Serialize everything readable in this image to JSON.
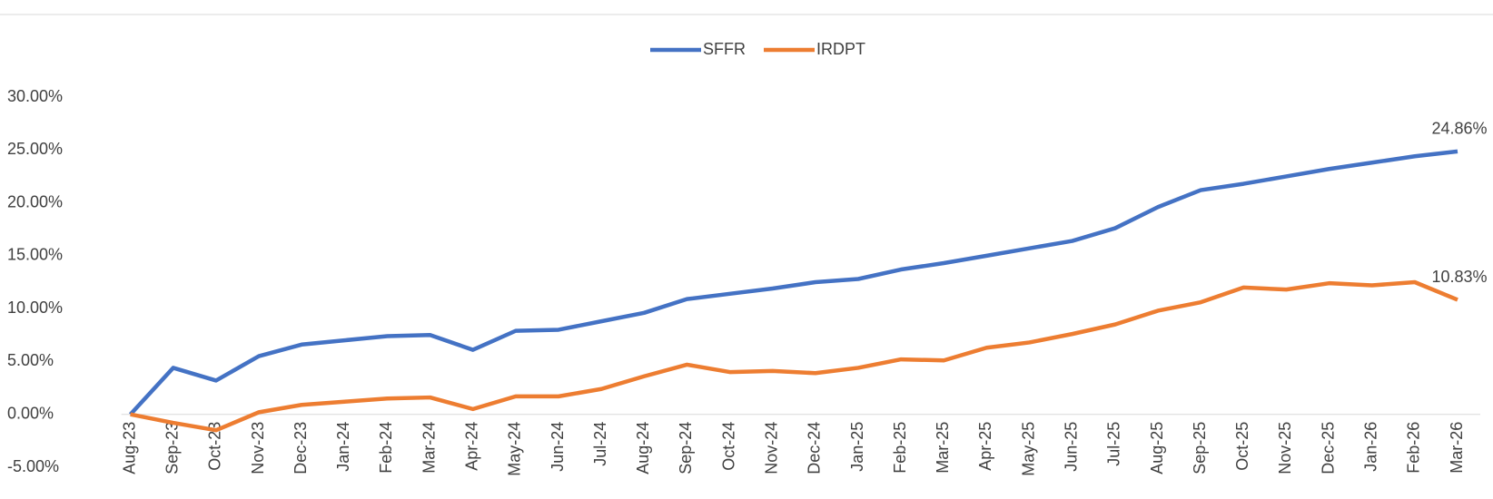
{
  "chart_data": {
    "type": "line",
    "categories": [
      "Aug-23",
      "Sep-23",
      "Oct-23",
      "Nov-23",
      "Dec-23",
      "Jan-24",
      "Feb-24",
      "Mar-24",
      "Apr-24",
      "May-24",
      "Jun-24",
      "Jul-24",
      "Aug-24",
      "Sep-24",
      "Oct-24",
      "Nov-24",
      "Dec-24",
      "Jan-25",
      "Feb-25",
      "Mar-25",
      "Apr-25",
      "May-25",
      "Jun-25",
      "Jul-25",
      "Aug-25",
      "Sep-25",
      "Oct-25",
      "Nov-25",
      "Dec-25",
      "Jan-26",
      "Feb-26",
      "Mar-26"
    ],
    "series": [
      {
        "name": "SFFR",
        "color": "#4472c4",
        "values": [
          0,
          4.4,
          3.2,
          5.5,
          6.6,
          7.0,
          7.4,
          7.5,
          6.1,
          7.9,
          8.0,
          8.8,
          9.6,
          10.9,
          11.4,
          11.9,
          12.5,
          12.8,
          13.7,
          14.3,
          15.0,
          15.7,
          16.4,
          17.6,
          19.6,
          21.2,
          21.8,
          22.5,
          23.2,
          23.8,
          24.4,
          24.86
        ],
        "value_labels": [
          null,
          null,
          null,
          null,
          null,
          null,
          null,
          null,
          null,
          null,
          null,
          null,
          null,
          null,
          null,
          null,
          null,
          null,
          null,
          null,
          null,
          null,
          null,
          null,
          null,
          null,
          null,
          null,
          null,
          null,
          null,
          "24.86%"
        ]
      },
      {
        "name": "IRDPT",
        "color": "#ed7d31",
        "values": [
          0,
          -0.8,
          -1.5,
          0.2,
          0.9,
          1.2,
          1.5,
          1.6,
          0.5,
          1.7,
          1.7,
          2.4,
          3.6,
          4.7,
          4.0,
          4.1,
          3.9,
          4.4,
          5.2,
          5.1,
          6.3,
          6.8,
          7.6,
          8.5,
          9.8,
          10.6,
          12.0,
          11.8,
          12.4,
          12.2,
          12.5,
          10.83
        ],
        "value_labels": [
          null,
          null,
          null,
          null,
          null,
          null,
          null,
          null,
          null,
          null,
          null,
          null,
          null,
          null,
          null,
          null,
          null,
          null,
          null,
          null,
          null,
          null,
          null,
          null,
          null,
          null,
          null,
          null,
          null,
          null,
          null,
          "10.83%"
        ]
      }
    ],
    "ylim": [
      -5,
      30
    ],
    "yticks": [
      {
        "value": -5,
        "label": "-5.00%"
      },
      {
        "value": 0,
        "label": "0.00%"
      },
      {
        "value": 5,
        "label": "5.00%"
      },
      {
        "value": 10,
        "label": "10.00%"
      },
      {
        "value": 15,
        "label": "15.00%"
      },
      {
        "value": 20,
        "label": "20.00%"
      },
      {
        "value": 25,
        "label": "25.00%"
      },
      {
        "value": 30,
        "label": "30.00%"
      }
    ],
    "legend": "top"
  }
}
